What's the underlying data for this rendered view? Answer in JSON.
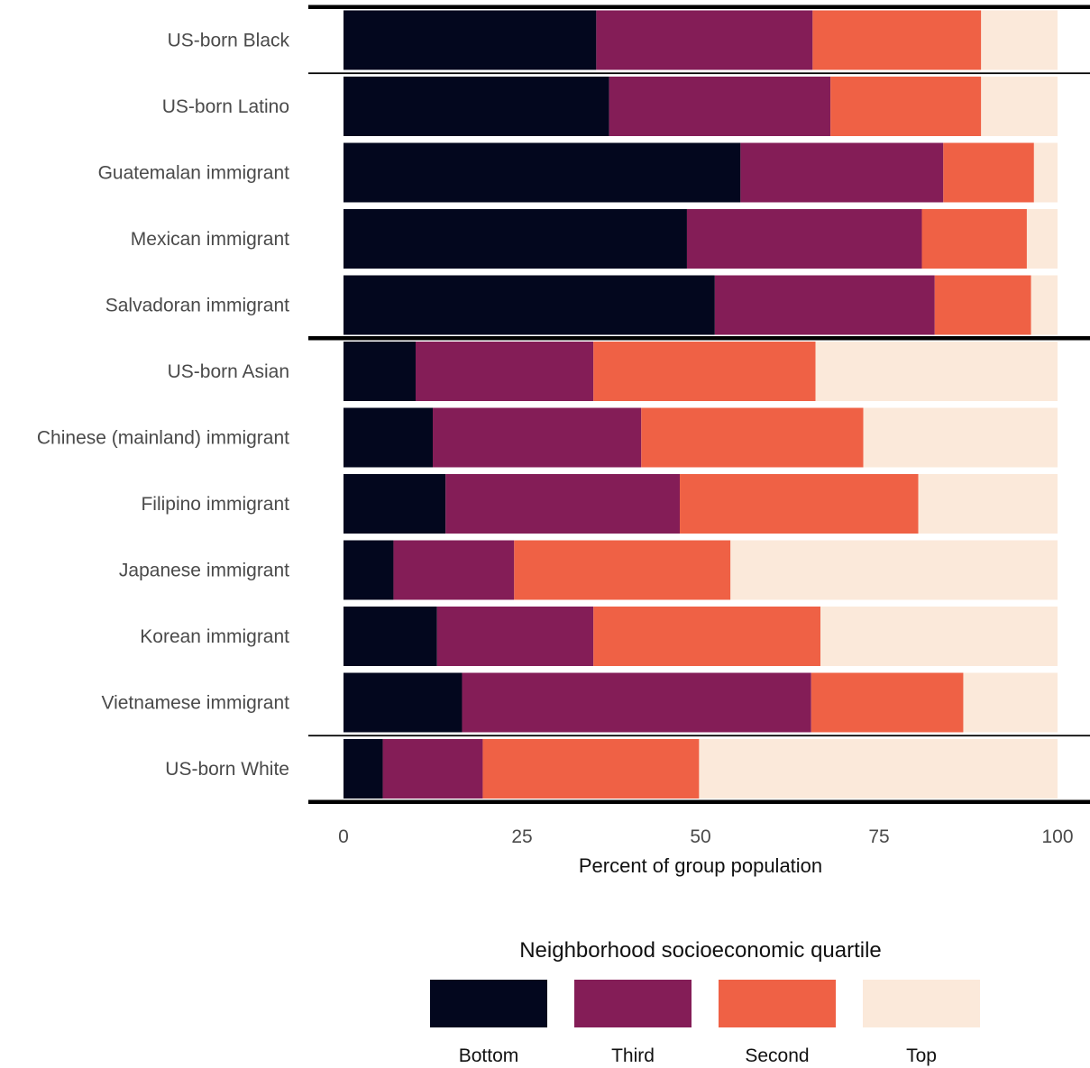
{
  "chart_data": {
    "type": "bar",
    "orientation": "horizontal",
    "stacked": true,
    "categories": [
      "US-born Black",
      "US-born Latino",
      "Guatemalan immigrant",
      "Mexican immigrant",
      "Salvadoran immigrant",
      "US-born Asian",
      "Chinese (mainland) immigrant",
      "Filipino immigrant",
      "Japanese immigrant",
      "Korean immigrant",
      "Vietnamese immigrant",
      "US-born White"
    ],
    "series": [
      {
        "name": "Bottom",
        "color": "#03071e",
        "values": [
          35.4,
          37.2,
          55.6,
          48.1,
          52.0,
          10.1,
          12.5,
          14.3,
          7.0,
          13.1,
          16.6,
          5.5
        ]
      },
      {
        "name": "Third",
        "color": "#841d57",
        "values": [
          30.3,
          31.0,
          28.4,
          32.9,
          30.8,
          24.9,
          29.2,
          32.8,
          16.9,
          21.9,
          48.9,
          14.0
        ]
      },
      {
        "name": "Second",
        "color": "#ef6145",
        "values": [
          23.6,
          21.1,
          12.7,
          14.7,
          13.5,
          31.1,
          31.1,
          33.4,
          30.3,
          31.8,
          21.3,
          30.3
        ]
      },
      {
        "name": "Top",
        "color": "#fbe9da",
        "values": [
          10.7,
          10.7,
          3.3,
          4.3,
          3.7,
          33.9,
          27.2,
          19.5,
          45.8,
          33.2,
          13.2,
          50.2
        ]
      }
    ],
    "group_separators": [
      {
        "after_index": -1,
        "weight": "thick"
      },
      {
        "after_index": 0,
        "weight": "thin"
      },
      {
        "after_index": 4,
        "weight": "thick"
      },
      {
        "after_index": 10,
        "weight": "thin"
      },
      {
        "after_index": 11,
        "weight": "thick"
      }
    ],
    "xlabel": "Percent of group population",
    "ylabel": "",
    "xlim": [
      0,
      100
    ],
    "xticks": [
      0,
      25,
      50,
      75,
      100
    ],
    "xtick_labels": [
      "0",
      "25",
      "50",
      "75",
      "100"
    ],
    "grid": false,
    "legend": {
      "title": "Neighborhood socioeconomic quartile",
      "position": "bottom",
      "items": [
        "Bottom",
        "Third",
        "Second",
        "Top"
      ]
    }
  }
}
